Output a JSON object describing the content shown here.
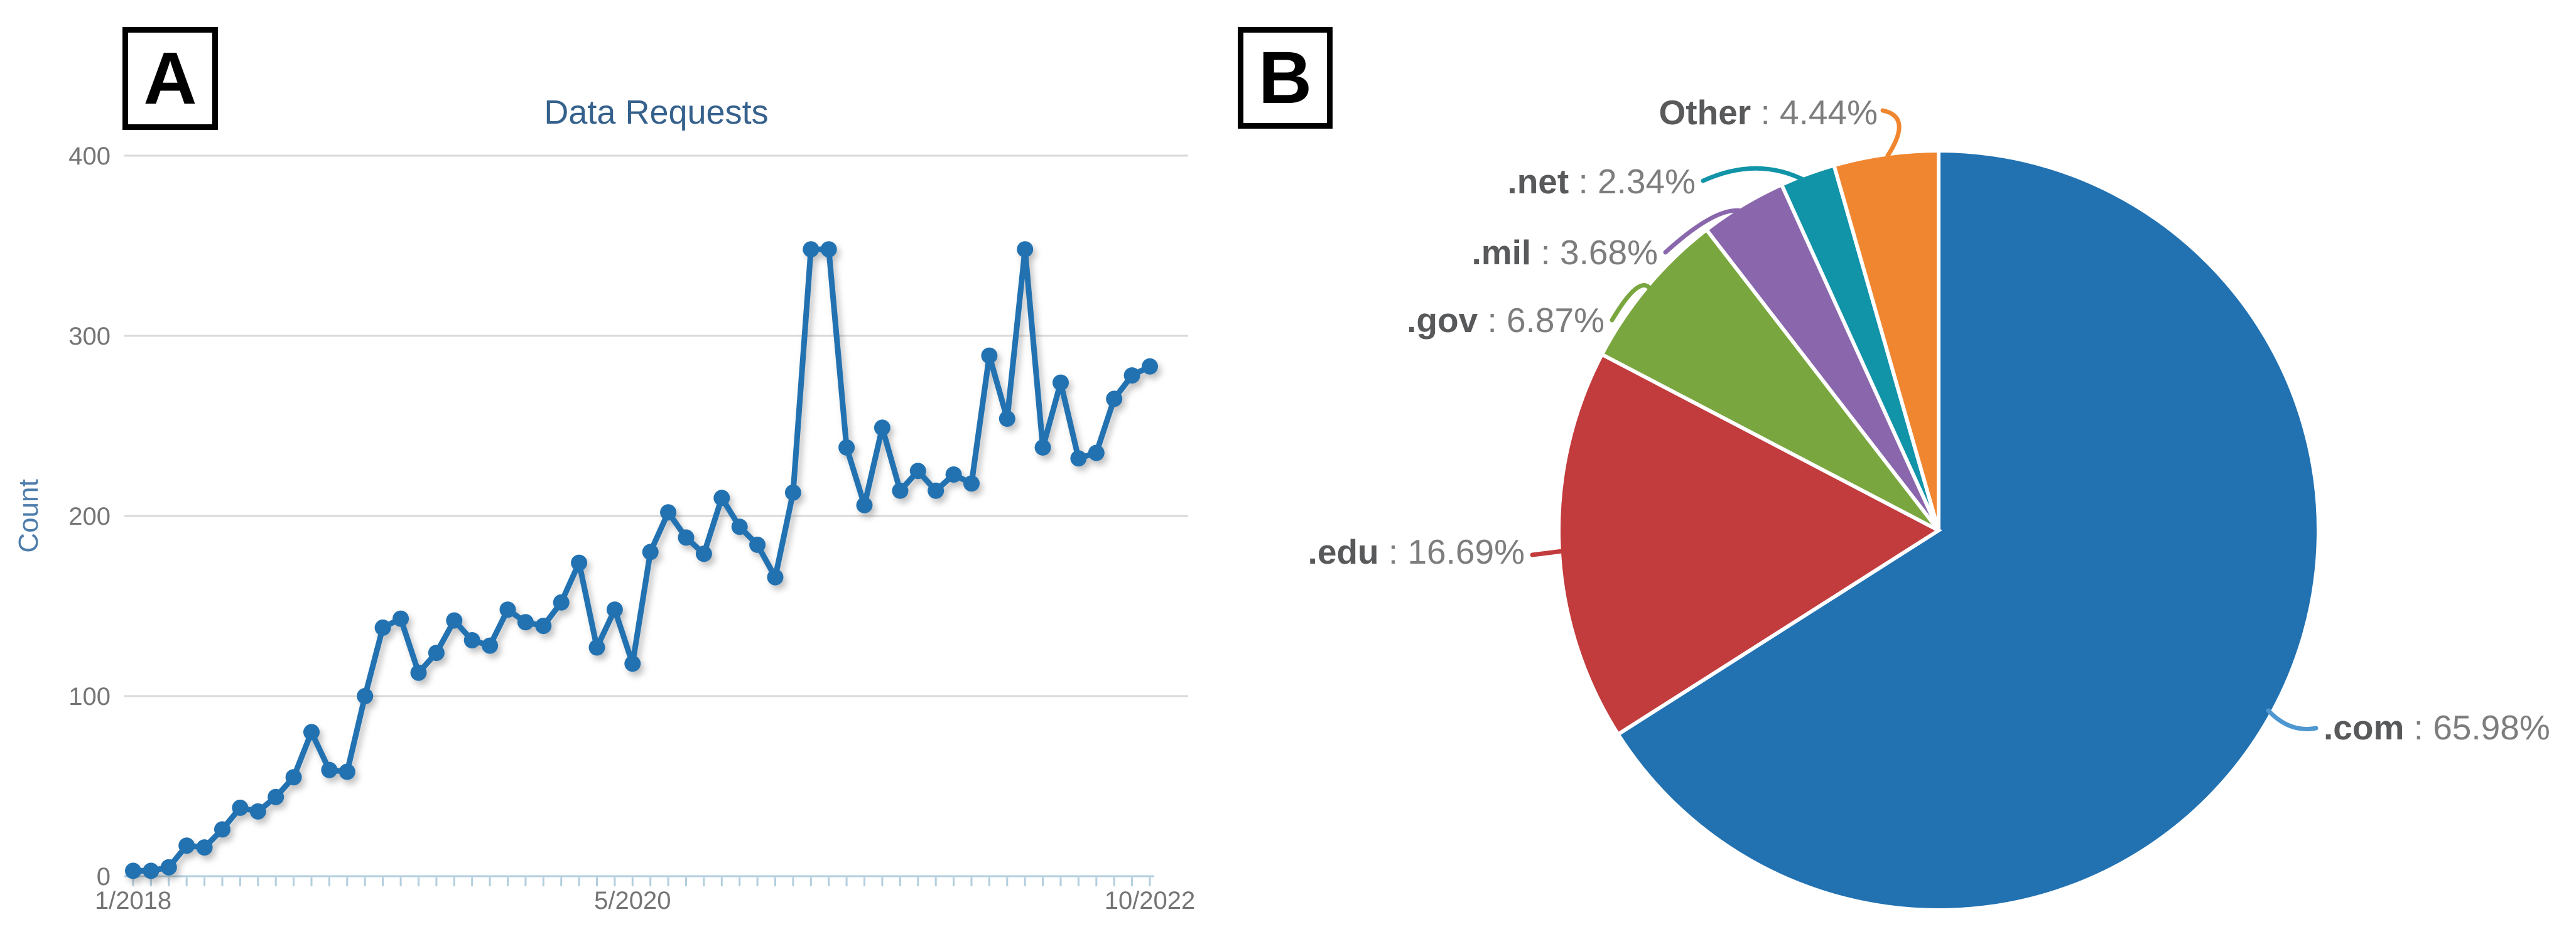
{
  "panel_a": {
    "label": "A"
  },
  "panel_b": {
    "label": "B"
  },
  "chart_data": [
    {
      "type": "line",
      "title": "Data Requests",
      "xlabel": "",
      "ylabel": "Count",
      "ylim": [
        0,
        400
      ],
      "y_ticks": [
        0,
        100,
        200,
        300,
        400
      ],
      "x_tick_labels": [
        "1/2018",
        "5/2020",
        "10/2022"
      ],
      "x_tick_positions": [
        0,
        28,
        57
      ],
      "x_start": "1/2018",
      "x_end": "10/2022",
      "x_frequency": "monthly",
      "grid": "horizontal",
      "legend": "none",
      "line_color": "#2272b2",
      "marker": "circle",
      "title_color": "#35618c",
      "ylabel_color": "#4d7dab",
      "axis_label_color": "#757575",
      "grid_color": "#d9d9d9",
      "axis_line_color": "#b3cede",
      "values": [
        3,
        3,
        5,
        17,
        16,
        26,
        38,
        36,
        44,
        55,
        80,
        59,
        58,
        100,
        138,
        143,
        113,
        124,
        142,
        131,
        128,
        148,
        141,
        139,
        152,
        174,
        127,
        148,
        118,
        180,
        202,
        188,
        179,
        210,
        194,
        184,
        166,
        213,
        348,
        348,
        238,
        206,
        249,
        214,
        225,
        214,
        223,
        218,
        289,
        254,
        348,
        238,
        274,
        232,
        235,
        265,
        278,
        283
      ]
    },
    {
      "type": "pie",
      "start_angle_deg": 0,
      "direction": "clockwise",
      "label_separator": " : ",
      "value_suffix": "%",
      "slices": [
        {
          "label": ".com",
          "value": 65.98,
          "color": "#2272b2",
          "leader_color": "#4e97d0"
        },
        {
          "label": ".edu",
          "value": 16.69,
          "color": "#c23b3d"
        },
        {
          "label": ".gov",
          "value": 6.87,
          "color": "#7aa63f"
        },
        {
          "label": ".mil",
          "value": 3.68,
          "color": "#8a67ad"
        },
        {
          "label": ".net",
          "value": 2.34,
          "color": "#1193a8"
        },
        {
          "label": "Other",
          "value": 4.44,
          "color": "#f0862f"
        }
      ]
    }
  ]
}
